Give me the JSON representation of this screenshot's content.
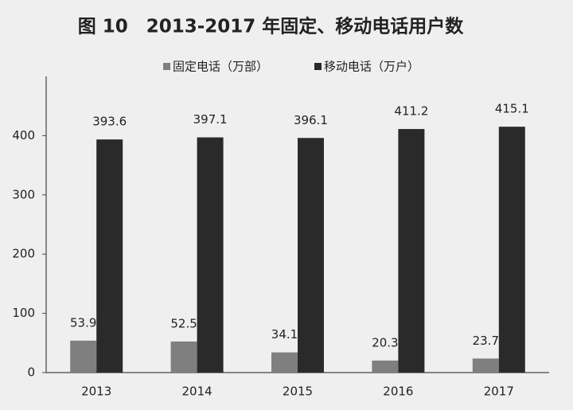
{
  "chart_data": {
    "type": "bar",
    "title": "图 10　2013-2017 年固定、移动电话用户数",
    "categories": [
      "2013",
      "2014",
      "2015",
      "2016",
      "2017"
    ],
    "series": [
      {
        "name": "固定电话（万部）",
        "color": "#7f7f7f",
        "values": [
          53.9,
          52.5,
          34.1,
          20.3,
          23.7
        ]
      },
      {
        "name": "移动电话（万户）",
        "color": "#2a2a2a",
        "values": [
          393.6,
          397.1,
          396.1,
          411.2,
          415.1
        ]
      }
    ],
    "ylim": [
      0,
      500
    ],
    "yticks": [
      0,
      100,
      200,
      300,
      400
    ],
    "grid": false,
    "legend": "top"
  }
}
